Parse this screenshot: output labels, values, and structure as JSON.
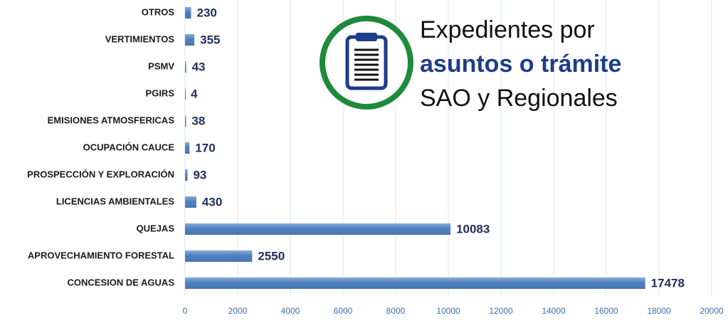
{
  "chart_data": {
    "type": "bar",
    "orientation": "horizontal",
    "title_lines": [
      "Expedientes por",
      "asuntos o trámite",
      "SAO y Regionales"
    ],
    "categories": [
      "OTROS",
      "VERTIMIENTOS",
      "PSMV",
      "PGIRS",
      "EMISIONES ATMOSFERICAS",
      "OCUPACIÓN CAUCE",
      "PROSPECCIÓN Y EXPLORACIÓN",
      "LICENCIAS AMBIENTALES",
      "QUEJAS",
      "APROVECHAMIENTO FORESTAL",
      "CONCESION DE AGUAS"
    ],
    "values": [
      230,
      355,
      43,
      4,
      38,
      170,
      93,
      430,
      10083,
      2550,
      17478
    ],
    "color": "#4a7cbf",
    "xlim": [
      0,
      20000
    ],
    "xticks": [
      0,
      2000,
      4000,
      6000,
      8000,
      10000,
      12000,
      14000,
      16000,
      18000,
      20000
    ],
    "grid": true
  }
}
